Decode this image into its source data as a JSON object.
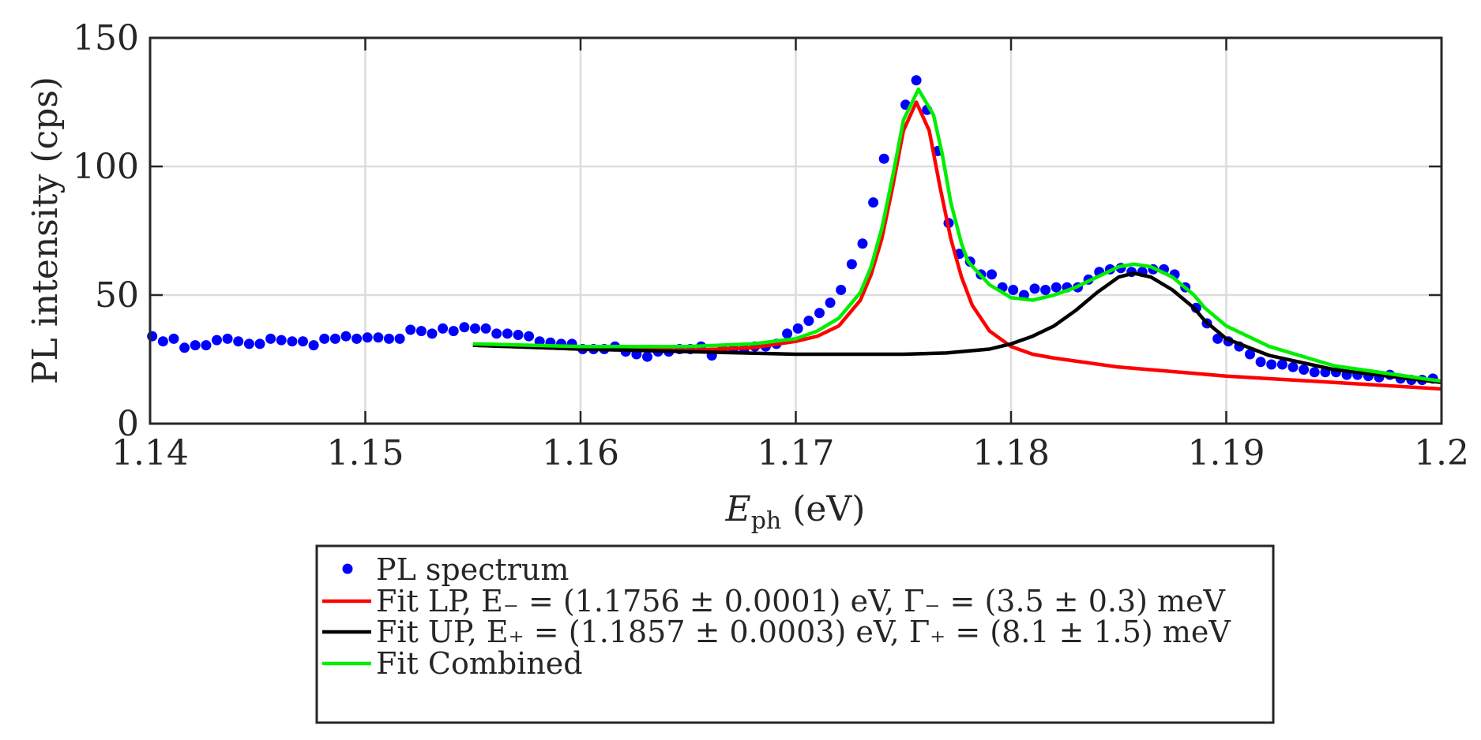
{
  "chart_data": {
    "type": "scatter",
    "title": "",
    "xlabel": {
      "main": "E",
      "sub": "ph",
      "unit": " (eV)"
    },
    "ylabel": "PL intensity (cps)",
    "xlim": [
      1.14,
      1.2
    ],
    "ylim": [
      0,
      150
    ],
    "xticks": [
      1.14,
      1.15,
      1.16,
      1.17,
      1.18,
      1.19,
      1.2
    ],
    "xtick_labels": [
      "1.14",
      "1.15",
      "1.16",
      "1.17",
      "1.18",
      "1.19",
      "1.2"
    ],
    "yticks": [
      0,
      50,
      100,
      150
    ],
    "ytick_labels": [
      "0",
      "50",
      "100",
      "150"
    ],
    "grid": true,
    "legend_position": "bottom-outside",
    "series": [
      {
        "name": "PL spectrum",
        "kind": "markers",
        "color": "#0000ff",
        "points": [
          [
            1.1401,
            34
          ],
          [
            1.1406,
            32
          ],
          [
            1.1411,
            33
          ],
          [
            1.1416,
            29.5
          ],
          [
            1.1421,
            30.5
          ],
          [
            1.1426,
            30.5
          ],
          [
            1.1431,
            32.5
          ],
          [
            1.1436,
            33
          ],
          [
            1.1441,
            32
          ],
          [
            1.1446,
            31
          ],
          [
            1.1451,
            31
          ],
          [
            1.1456,
            33
          ],
          [
            1.1461,
            32.5
          ],
          [
            1.1466,
            32
          ],
          [
            1.1471,
            32
          ],
          [
            1.1476,
            30.5
          ],
          [
            1.1481,
            33
          ],
          [
            1.1486,
            33
          ],
          [
            1.1491,
            34
          ],
          [
            1.1496,
            33
          ],
          [
            1.1501,
            33.5
          ],
          [
            1.1506,
            33.5
          ],
          [
            1.1511,
            33
          ],
          [
            1.1516,
            33
          ],
          [
            1.1521,
            36.5
          ],
          [
            1.1526,
            36
          ],
          [
            1.1531,
            35
          ],
          [
            1.1536,
            37
          ],
          [
            1.1541,
            36
          ],
          [
            1.1546,
            37.5
          ],
          [
            1.1551,
            37
          ],
          [
            1.1556,
            37
          ],
          [
            1.1561,
            35
          ],
          [
            1.1566,
            35
          ],
          [
            1.1571,
            34.5
          ],
          [
            1.1576,
            34
          ],
          [
            1.1581,
            32
          ],
          [
            1.1586,
            31.5
          ],
          [
            1.1591,
            31
          ],
          [
            1.1596,
            31
          ],
          [
            1.1601,
            29
          ],
          [
            1.1606,
            29
          ],
          [
            1.1611,
            29
          ],
          [
            1.1616,
            30
          ],
          [
            1.1621,
            28
          ],
          [
            1.1626,
            27
          ],
          [
            1.1631,
            26
          ],
          [
            1.1636,
            28
          ],
          [
            1.1641,
            28
          ],
          [
            1.1646,
            29
          ],
          [
            1.1651,
            29
          ],
          [
            1.1656,
            30
          ],
          [
            1.1661,
            26.5
          ],
          [
            1.1666,
            29
          ],
          [
            1.1671,
            29
          ],
          [
            1.1676,
            29
          ],
          [
            1.1681,
            30
          ],
          [
            1.1686,
            30
          ],
          [
            1.1691,
            31
          ],
          [
            1.1696,
            35
          ],
          [
            1.1701,
            37
          ],
          [
            1.1706,
            40
          ],
          [
            1.1711,
            43
          ],
          [
            1.1716,
            47
          ],
          [
            1.1721,
            52
          ],
          [
            1.1726,
            62
          ],
          [
            1.1731,
            70
          ],
          [
            1.1736,
            86
          ],
          [
            1.1741,
            103
          ],
          [
            1.1751,
            124
          ],
          [
            1.1756,
            133.5
          ],
          [
            1.1761,
            122
          ],
          [
            1.1766,
            106
          ],
          [
            1.1771,
            78
          ],
          [
            1.1776,
            66
          ],
          [
            1.1781,
            63
          ],
          [
            1.1786,
            58
          ],
          [
            1.1791,
            58
          ],
          [
            1.1796,
            53
          ],
          [
            1.1801,
            52
          ],
          [
            1.1806,
            50
          ],
          [
            1.1811,
            52.5
          ],
          [
            1.1816,
            52
          ],
          [
            1.1821,
            53
          ],
          [
            1.1826,
            53
          ],
          [
            1.1831,
            53
          ],
          [
            1.1836,
            56
          ],
          [
            1.1841,
            59
          ],
          [
            1.1846,
            60
          ],
          [
            1.1851,
            60.5
          ],
          [
            1.1856,
            59
          ],
          [
            1.1861,
            59
          ],
          [
            1.1866,
            60
          ],
          [
            1.1871,
            60
          ],
          [
            1.1876,
            58
          ],
          [
            1.1881,
            53
          ],
          [
            1.1886,
            45
          ],
          [
            1.1891,
            39
          ],
          [
            1.1896,
            33
          ],
          [
            1.1901,
            32
          ],
          [
            1.1906,
            30
          ],
          [
            1.1911,
            27
          ],
          [
            1.1916,
            24
          ],
          [
            1.1921,
            23
          ],
          [
            1.1926,
            23
          ],
          [
            1.1931,
            22
          ],
          [
            1.1936,
            21
          ],
          [
            1.1941,
            20
          ],
          [
            1.1946,
            20
          ],
          [
            1.1951,
            20
          ],
          [
            1.1956,
            19
          ],
          [
            1.1961,
            19
          ],
          [
            1.1966,
            18.5
          ],
          [
            1.1971,
            18
          ],
          [
            1.1976,
            19
          ],
          [
            1.1981,
            17.5
          ],
          [
            1.1986,
            17
          ],
          [
            1.1991,
            17
          ],
          [
            1.1996,
            17.5
          ]
        ]
      },
      {
        "name": "Fit LP",
        "kind": "line",
        "color": "#ff0000",
        "points": [
          [
            1.155,
            30.5
          ],
          [
            1.16,
            29
          ],
          [
            1.165,
            28.5
          ],
          [
            1.168,
            29.5
          ],
          [
            1.17,
            32
          ],
          [
            1.171,
            34
          ],
          [
            1.172,
            38
          ],
          [
            1.173,
            48
          ],
          [
            1.1735,
            58
          ],
          [
            1.174,
            72
          ],
          [
            1.1745,
            92
          ],
          [
            1.175,
            114
          ],
          [
            1.1756,
            125
          ],
          [
            1.1762,
            114
          ],
          [
            1.1767,
            92
          ],
          [
            1.1772,
            72
          ],
          [
            1.1777,
            57
          ],
          [
            1.1782,
            46
          ],
          [
            1.179,
            36
          ],
          [
            1.18,
            30
          ],
          [
            1.181,
            27
          ],
          [
            1.182,
            25.5
          ],
          [
            1.185,
            22
          ],
          [
            1.19,
            18.5
          ],
          [
            1.195,
            16
          ],
          [
            1.2,
            13.5
          ]
        ]
      },
      {
        "name": "Fit UP",
        "kind": "line",
        "color": "#000000",
        "points": [
          [
            1.155,
            30.5
          ],
          [
            1.16,
            29
          ],
          [
            1.165,
            28
          ],
          [
            1.17,
            27
          ],
          [
            1.175,
            27
          ],
          [
            1.177,
            27.5
          ],
          [
            1.179,
            29
          ],
          [
            1.18,
            31
          ],
          [
            1.181,
            34
          ],
          [
            1.182,
            38
          ],
          [
            1.183,
            44
          ],
          [
            1.184,
            51
          ],
          [
            1.185,
            57
          ],
          [
            1.1857,
            58.5
          ],
          [
            1.1865,
            57
          ],
          [
            1.1875,
            52
          ],
          [
            1.1885,
            45
          ],
          [
            1.189,
            40
          ],
          [
            1.19,
            33
          ],
          [
            1.192,
            26.5
          ],
          [
            1.195,
            21
          ],
          [
            1.2,
            16
          ]
        ]
      },
      {
        "name": "Fit Combined",
        "kind": "line",
        "color": "#00ee00",
        "points": [
          [
            1.155,
            31
          ],
          [
            1.16,
            30
          ],
          [
            1.165,
            30
          ],
          [
            1.168,
            31
          ],
          [
            1.17,
            33
          ],
          [
            1.171,
            36
          ],
          [
            1.172,
            41
          ],
          [
            1.173,
            51
          ],
          [
            1.1735,
            61
          ],
          [
            1.174,
            76
          ],
          [
            1.1745,
            96
          ],
          [
            1.175,
            118
          ],
          [
            1.1757,
            130
          ],
          [
            1.1764,
            120
          ],
          [
            1.1768,
            105
          ],
          [
            1.1772,
            86
          ],
          [
            1.1777,
            70
          ],
          [
            1.178,
            63
          ],
          [
            1.179,
            54
          ],
          [
            1.18,
            49
          ],
          [
            1.181,
            48
          ],
          [
            1.182,
            50
          ],
          [
            1.183,
            53
          ],
          [
            1.184,
            57
          ],
          [
            1.185,
            61
          ],
          [
            1.1857,
            62
          ],
          [
            1.1865,
            61
          ],
          [
            1.1875,
            57
          ],
          [
            1.1885,
            50
          ],
          [
            1.189,
            45
          ],
          [
            1.19,
            38
          ],
          [
            1.192,
            30
          ],
          [
            1.195,
            22.5
          ],
          [
            1.2,
            16.5
          ]
        ]
      }
    ],
    "legend": [
      {
        "label": "PL spectrum",
        "symbol": "marker",
        "color": "#0000ff"
      },
      {
        "label": "Fit LP, E₋ = (1.1756 ± 0.0001) eV, Γ₋ = (3.5 ± 0.3) meV",
        "symbol": "line",
        "color": "#ff0000"
      },
      {
        "label": "Fit UP, E₊ = (1.1857 ± 0.0003) eV, Γ₊ = (8.1 ± 1.5) meV",
        "symbol": "line",
        "color": "#000000"
      },
      {
        "label": "Fit Combined",
        "symbol": "line",
        "color": "#00ee00"
      }
    ]
  }
}
